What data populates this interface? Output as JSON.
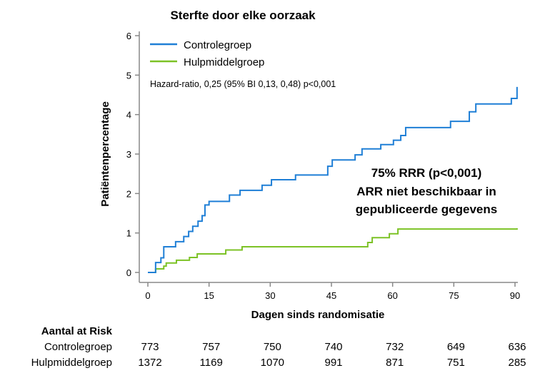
{
  "chart_data": {
    "type": "line",
    "step": true,
    "title": "Sterfte door elke oorzaak",
    "xlabel": "Dagen sinds randomisatie",
    "ylabel": "Patiëntenpercentage",
    "xlim": [
      0,
      90
    ],
    "ylim": [
      0,
      6
    ],
    "xticks": [
      0,
      15,
      30,
      45,
      60,
      75,
      90
    ],
    "yticks": [
      0,
      1,
      2,
      3,
      4,
      5,
      6
    ],
    "grid": false,
    "legend_position": "top-left",
    "hazard_text": "Hazard-ratio, 0,25 (95% BI 0,13, 0,48) p<0,001",
    "annotation": [
      "75% RRR (p<0,001)",
      "ARR niet beschikbaar in",
      "gepubliceerde gegevens"
    ],
    "series": [
      {
        "name": "Controlegroep",
        "color": "#1f7fd6",
        "x": [
          0,
          1.9,
          3.2,
          3.9,
          6.8,
          8.8,
          10,
          11,
          12.3,
          13.3,
          14,
          15,
          20,
          22.6,
          28,
          30.3,
          36.2,
          44.1,
          45.2,
          50.8,
          52.5,
          57.1,
          60.2,
          62,
          63.2,
          74.2,
          78.8,
          80.4,
          89.1,
          90.5
        ],
        "y": [
          0,
          0.25,
          0.37,
          0.65,
          0.78,
          0.91,
          1.04,
          1.17,
          1.3,
          1.44,
          1.71,
          1.8,
          1.96,
          2.08,
          2.21,
          2.35,
          2.47,
          2.69,
          2.85,
          2.98,
          3.13,
          3.24,
          3.35,
          3.47,
          3.67,
          3.83,
          4.07,
          4.27,
          4.41,
          4.7
        ]
      },
      {
        "name": "Hulpmiddelgroep",
        "color": "#7cc225",
        "x": [
          0,
          1.9,
          3.9,
          4.5,
          7,
          10.2,
          12.1,
          19.1,
          23.1,
          53.9,
          55,
          59.2,
          61.3,
          90.5
        ],
        "y": [
          0,
          0.09,
          0.16,
          0.24,
          0.31,
          0.38,
          0.47,
          0.57,
          0.65,
          0.76,
          0.88,
          0.98,
          1.1,
          1.12
        ]
      }
    ],
    "risk_table": {
      "title": "Aantal at Risk",
      "rows": [
        {
          "label": "Controlegroep",
          "values": [
            "773",
            "757",
            "750",
            "740",
            "732",
            "649",
            "636"
          ]
        },
        {
          "label": "Hulpmiddelgroep",
          "values": [
            "1372",
            "1169",
            "1070",
            "991",
            "871",
            "751",
            "285"
          ]
        }
      ]
    }
  }
}
